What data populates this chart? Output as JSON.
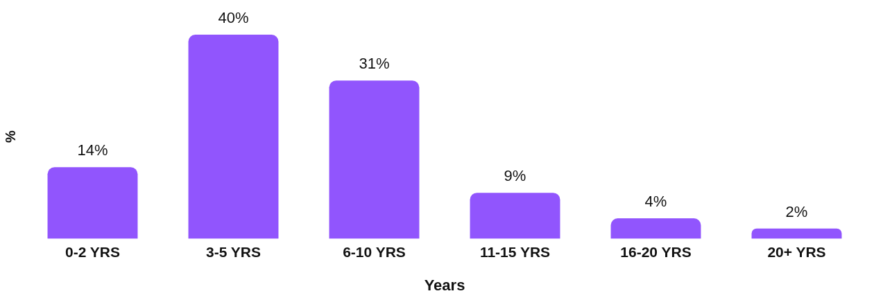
{
  "chart_data": {
    "type": "bar",
    "xlabel": "Years",
    "ylabel": "%",
    "categories": [
      "0-2 YRS",
      "3-5 YRS",
      "6-10 YRS",
      "11-15 YRS",
      "16-20 YRS",
      "20+ YRS"
    ],
    "values": [
      14,
      40,
      31,
      9,
      4,
      2
    ],
    "value_labels": [
      "14%",
      "40%",
      "31%",
      "9%",
      "4%",
      "2%"
    ],
    "color": "#9155fd",
    "grid": false,
    "legend": false,
    "tick_labels": "x"
  }
}
